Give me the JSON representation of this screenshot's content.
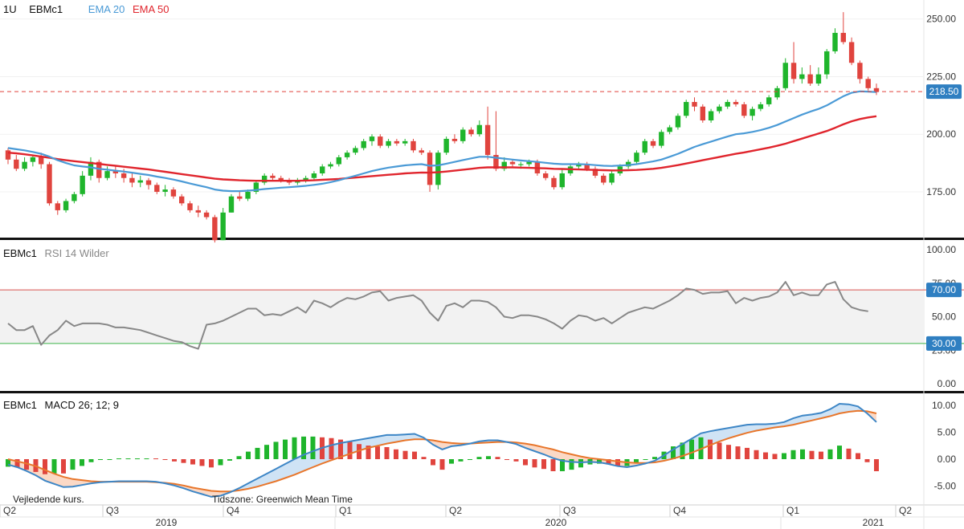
{
  "header": {
    "interval": "1U",
    "symbol": "EBMc1",
    "ema20_label": "EMA 20",
    "ema50_label": "EMA 50"
  },
  "rsi_header": {
    "symbol": "EBMc1",
    "label": "RSI 14 Wilder"
  },
  "macd_header": {
    "symbol": "EBMc1",
    "label": "MACD 26; 12; 9"
  },
  "footer": {
    "note": "Vejledende kurs.",
    "timezone": "Tidszone: Greenwich Mean Time"
  },
  "colors": {
    "up": "#1fb52c",
    "down": "#e0443e",
    "ema20": "#4a9ad6",
    "ema50": "#e0252d",
    "macd_line": "#3d86c6",
    "signal_line": "#e8762b",
    "rsi_line": "#888888",
    "rsi_70": "#d9534f",
    "rsi_30": "#3cb54a",
    "price_badge": "#2f7fc1"
  },
  "chart_data": [
    {
      "type": "candlestick",
      "title": "EBMc1",
      "series_names": [
        "EMA 20",
        "EMA 50"
      ],
      "ylim": [
        160,
        255
      ],
      "yticks": [
        "175.00",
        "200.00",
        "225.00",
        "250.00"
      ],
      "last_price": "218.50",
      "x_quarter_labels": [
        "Q2",
        "Q3",
        "Q4",
        "Q1",
        "Q2",
        "Q3",
        "Q4",
        "Q1",
        "Q2"
      ],
      "x_year_labels": [
        "2019",
        "2020",
        "2021"
      ],
      "candles": [
        [
          193,
          189,
          194,
          187
        ],
        [
          189,
          185,
          191,
          184
        ],
        [
          185,
          188,
          190,
          184
        ],
        [
          188,
          190,
          191,
          186
        ],
        [
          190,
          187,
          192,
          185
        ],
        [
          187,
          170,
          188,
          169
        ],
        [
          170,
          167,
          171,
          165
        ],
        [
          167,
          171,
          172,
          166
        ],
        [
          171,
          174,
          175,
          170
        ],
        [
          174,
          182,
          184,
          173
        ],
        [
          182,
          188,
          190,
          180
        ],
        [
          188,
          181,
          189,
          179
        ],
        [
          181,
          184,
          186,
          180
        ],
        [
          184,
          183,
          186,
          181
        ],
        [
          183,
          181,
          185,
          179
        ],
        [
          181,
          179,
          183,
          177
        ],
        [
          179,
          180,
          182,
          177
        ],
        [
          180,
          178,
          181,
          176
        ],
        [
          178,
          175,
          179,
          174
        ],
        [
          175,
          176,
          178,
          173
        ],
        [
          176,
          173,
          177,
          172
        ],
        [
          173,
          170,
          174,
          169
        ],
        [
          170,
          167,
          171,
          166
        ],
        [
          167,
          166,
          169,
          164
        ],
        [
          166,
          164,
          167,
          163
        ],
        [
          164,
          154,
          165,
          153
        ],
        [
          154,
          166,
          168,
          154
        ],
        [
          166,
          173,
          174,
          166
        ],
        [
          173,
          172,
          175,
          171
        ],
        [
          172,
          175,
          176,
          171
        ],
        [
          175,
          179,
          180,
          174
        ],
        [
          179,
          182,
          183,
          178
        ],
        [
          182,
          181,
          183,
          180
        ],
        [
          181,
          180,
          182,
          179
        ],
        [
          180,
          179,
          181,
          178
        ],
        [
          179,
          180,
          181,
          178
        ],
        [
          180,
          181,
          182,
          179
        ],
        [
          181,
          183,
          184,
          180
        ],
        [
          183,
          186,
          187,
          182
        ],
        [
          186,
          187,
          188,
          185
        ],
        [
          187,
          190,
          191,
          186
        ],
        [
          190,
          192,
          193,
          189
        ],
        [
          192,
          194,
          195,
          191
        ],
        [
          194,
          197,
          198,
          193
        ],
        [
          197,
          199,
          200,
          195
        ],
        [
          199,
          195,
          200,
          194
        ],
        [
          195,
          197,
          198,
          194
        ],
        [
          197,
          196,
          198,
          195
        ],
        [
          196,
          197,
          198,
          195
        ],
        [
          197,
          193,
          198,
          192
        ],
        [
          193,
          192,
          194,
          191
        ],
        [
          192,
          178,
          193,
          175
        ],
        [
          178,
          192,
          193,
          176
        ],
        [
          192,
          198,
          199,
          191
        ],
        [
          198,
          197,
          200,
          196
        ],
        [
          197,
          202,
          203,
          196
        ],
        [
          202,
          200,
          203,
          199
        ],
        [
          200,
          204,
          206,
          199
        ],
        [
          204,
          191,
          212,
          189
        ],
        [
          191,
          185,
          210,
          184
        ],
        [
          185,
          188,
          190,
          184
        ],
        [
          188,
          187,
          189,
          186
        ],
        [
          187,
          187,
          188,
          185
        ],
        [
          187,
          188,
          189,
          186
        ],
        [
          188,
          183,
          189,
          182
        ],
        [
          183,
          181,
          184,
          180
        ],
        [
          181,
          177,
          182,
          176
        ],
        [
          177,
          183,
          185,
          176
        ],
        [
          183,
          186,
          187,
          182
        ],
        [
          186,
          187,
          188,
          185
        ],
        [
          187,
          185,
          188,
          184
        ],
        [
          185,
          182,
          186,
          181
        ],
        [
          182,
          179,
          183,
          178
        ],
        [
          179,
          183,
          184,
          178
        ],
        [
          183,
          186,
          187,
          182
        ],
        [
          186,
          188,
          189,
          185
        ],
        [
          188,
          192,
          193,
          187
        ],
        [
          192,
          197,
          198,
          191
        ],
        [
          197,
          195,
          198,
          194
        ],
        [
          195,
          201,
          202,
          194
        ],
        [
          201,
          203,
          204,
          200
        ],
        [
          203,
          208,
          209,
          202
        ],
        [
          208,
          214,
          215,
          207
        ],
        [
          214,
          212,
          216,
          210
        ],
        [
          212,
          206,
          213,
          205
        ],
        [
          206,
          210,
          211,
          205
        ],
        [
          210,
          212,
          213,
          209
        ],
        [
          212,
          214,
          215,
          211
        ],
        [
          214,
          213,
          215,
          212
        ],
        [
          213,
          208,
          214,
          207
        ],
        [
          208,
          211,
          212,
          206
        ],
        [
          211,
          213,
          214,
          210
        ],
        [
          213,
          216,
          217,
          212
        ],
        [
          216,
          220,
          221,
          215
        ],
        [
          220,
          231,
          233,
          219
        ],
        [
          231,
          224,
          240,
          222
        ],
        [
          224,
          226,
          229,
          222
        ],
        [
          226,
          222,
          230,
          221
        ],
        [
          222,
          226,
          229,
          221
        ],
        [
          226,
          236,
          237,
          224
        ],
        [
          236,
          244,
          246,
          235
        ],
        [
          244,
          240,
          253,
          239
        ],
        [
          240,
          231,
          242,
          230
        ],
        [
          231,
          224,
          232,
          222
        ],
        [
          224,
          220,
          225,
          219
        ],
        [
          220,
          218.5,
          222,
          217
        ]
      ],
      "ema20": [
        194,
        193.5,
        193,
        192.3,
        191.5,
        190.3,
        188.7,
        187.5,
        186.5,
        186,
        185.6,
        185,
        184.6,
        184.2,
        183.8,
        183.3,
        182.8,
        182.3,
        181.6,
        181,
        180.3,
        179.5,
        178.6,
        177.8,
        177,
        176,
        175.5,
        175.3,
        175.3,
        175.5,
        175.8,
        176.2,
        176.5,
        176.8,
        177,
        177.3,
        177.6,
        178,
        178.5,
        179.2,
        180,
        181,
        182,
        183,
        184,
        184.8,
        185.5,
        186,
        186.5,
        186.8,
        187,
        186.3,
        186.5,
        187.2,
        188,
        188.8,
        189.5,
        190.2,
        190.2,
        189.8,
        189.4,
        189,
        188.6,
        188.3,
        188,
        187.6,
        187.2,
        187,
        187,
        187,
        186.9,
        186.6,
        186.3,
        186.2,
        186.4,
        186.6,
        187,
        187.6,
        188.2,
        189,
        190.2,
        191.5,
        193,
        194.5,
        195.7,
        196.8,
        197.9,
        199,
        200,
        200.4,
        201,
        201.8,
        202.8,
        204,
        205.5,
        207,
        208.5,
        209.8,
        211,
        212.5,
        214.5,
        216.5,
        218,
        218.6,
        218.5,
        218.3
      ],
      "ema50": [
        192,
        191.7,
        191.3,
        190.8,
        190.3,
        189.8,
        189.2,
        188.7,
        188.3,
        187.9,
        187.5,
        187.1,
        186.7,
        186.3,
        185.9,
        185.5,
        185.1,
        184.7,
        184.2,
        183.7,
        183.2,
        182.7,
        182.2,
        181.7,
        181.2,
        180.7,
        180.4,
        180.2,
        180,
        179.9,
        179.8,
        179.8,
        179.8,
        179.8,
        179.8,
        179.8,
        179.9,
        180,
        180.2,
        180.4,
        180.6,
        180.9,
        181.2,
        181.5,
        181.8,
        182.1,
        182.4,
        182.7,
        183,
        183.2,
        183.4,
        183.3,
        183.5,
        183.8,
        184.2,
        184.6,
        185,
        185.4,
        185.6,
        185.6,
        185.6,
        185.6,
        185.5,
        185.4,
        185.3,
        185.2,
        185,
        184.9,
        184.8,
        184.7,
        184.6,
        184.5,
        184.4,
        184.3,
        184.3,
        184.4,
        184.5,
        184.7,
        185,
        185.4,
        186,
        186.6,
        187.3,
        188,
        188.7,
        189.4,
        190.1,
        190.8,
        191.5,
        192.1,
        192.8,
        193.5,
        194.2,
        195,
        195.9,
        197,
        198.1,
        199.2,
        200.3,
        201.4,
        202.8,
        204.3,
        205.6,
        206.6,
        207.3,
        207.8
      ]
    },
    {
      "type": "line",
      "title": "RSI 14 Wilder",
      "ylim": [
        0,
        100
      ],
      "yticks": [
        "0.00",
        "25.00",
        "50.00",
        "75.00",
        "100.00"
      ],
      "levels": [
        "70.00",
        "30.00"
      ],
      "values": [
        45,
        40,
        40,
        43,
        29,
        36,
        40,
        47,
        43,
        45,
        45,
        45,
        44,
        42,
        42,
        41,
        40,
        38,
        36,
        34,
        32,
        31,
        28,
        26,
        44,
        45,
        47,
        50,
        53,
        56,
        56,
        51,
        52,
        51,
        54,
        57,
        53,
        62,
        60,
        57,
        61,
        64,
        63,
        65,
        68,
        69,
        62,
        64,
        65,
        66,
        62,
        53,
        47,
        58,
        60,
        57,
        62,
        62,
        61,
        57,
        50,
        49,
        51,
        51,
        50,
        48,
        45,
        41,
        47,
        51,
        50,
        47,
        49,
        45,
        49,
        53,
        55,
        57,
        56,
        59,
        62,
        66,
        71,
        70,
        67,
        68,
        68,
        69,
        60,
        64,
        62,
        64,
        65,
        68,
        76,
        66,
        68,
        66,
        66,
        74,
        76,
        63,
        57,
        55,
        54
      ]
    },
    {
      "type": "line+bar",
      "title": "MACD 26; 12; 9",
      "series_names": [
        "MACD",
        "Signal",
        "Histogram"
      ],
      "ylim": [
        -7.5,
        12
      ],
      "yticks": [
        "-5.00",
        "0.00",
        "5.00",
        "10.00"
      ],
      "macd": [
        -1,
        -1.5,
        -2.2,
        -3,
        -4,
        -4.6,
        -5.2,
        -5.1,
        -4.8,
        -4.5,
        -4.3,
        -4.2,
        -4.1,
        -4.1,
        -4.1,
        -4.1,
        -4.2,
        -4.5,
        -4.9,
        -5.4,
        -6,
        -6.5,
        -7,
        -6.8,
        -6.2,
        -5.4,
        -4.5,
        -3.6,
        -2.7,
        -1.8,
        -0.9,
        0,
        0.8,
        1.5,
        2.1,
        2.6,
        3,
        3.3,
        3.6,
        3.9,
        4.2,
        4.5,
        4.5,
        4.6,
        4.7,
        4,
        2.7,
        1.8,
        2.4,
        2.6,
        2.9,
        3.3,
        3.5,
        3.5,
        3.2,
        2.8,
        2.1,
        1.5,
        0.9,
        0.2,
        -0.3,
        -0.5,
        -0.6,
        -0.5,
        -0.6,
        -0.9,
        -1.3,
        -1.5,
        -1.2,
        -0.8,
        -0.3,
        0.7,
        1.8,
        2.8,
        3.8,
        4.8,
        5.2,
        5.5,
        5.8,
        6.1,
        6.4,
        6.5,
        6.5,
        6.6,
        6.9,
        7.6,
        8.1,
        8.3,
        8.6,
        9.3,
        10.3,
        10.2,
        9.8,
        8.5,
        6.9
      ],
      "signal": [
        0,
        -0.4,
        -0.8,
        -1.3,
        -2,
        -2.7,
        -3.3,
        -3.7,
        -3.9,
        -4.1,
        -4.2,
        -4.2,
        -4.2,
        -4.2,
        -4.2,
        -4.2,
        -4.3,
        -4.4,
        -4.6,
        -4.9,
        -5.3,
        -5.6,
        -5.9,
        -6,
        -6,
        -5.8,
        -5.5,
        -5.1,
        -4.6,
        -4.1,
        -3.5,
        -2.9,
        -2.2,
        -1.5,
        -0.8,
        -0.2,
        0.4,
        1,
        1.6,
        2.1,
        2.5,
        2.9,
        3.2,
        3.5,
        3.7,
        3.7,
        3.5,
        3.2,
        3,
        2.9,
        2.9,
        3,
        3.1,
        3.2,
        3.2,
        3.1,
        2.9,
        2.6,
        2.2,
        1.8,
        1.3,
        0.9,
        0.5,
        0.2,
        0,
        -0.2,
        -0.4,
        -0.6,
        -0.7,
        -0.7,
        -0.6,
        -0.3,
        0.1,
        0.6,
        1.2,
        1.9,
        2.6,
        3.3,
        3.9,
        4.4,
        4.9,
        5.3,
        5.6,
        5.9,
        6.1,
        6.4,
        6.8,
        7.2,
        7.6,
        8,
        8.5,
        8.8,
        9,
        8.9,
        8.5
      ]
    }
  ]
}
